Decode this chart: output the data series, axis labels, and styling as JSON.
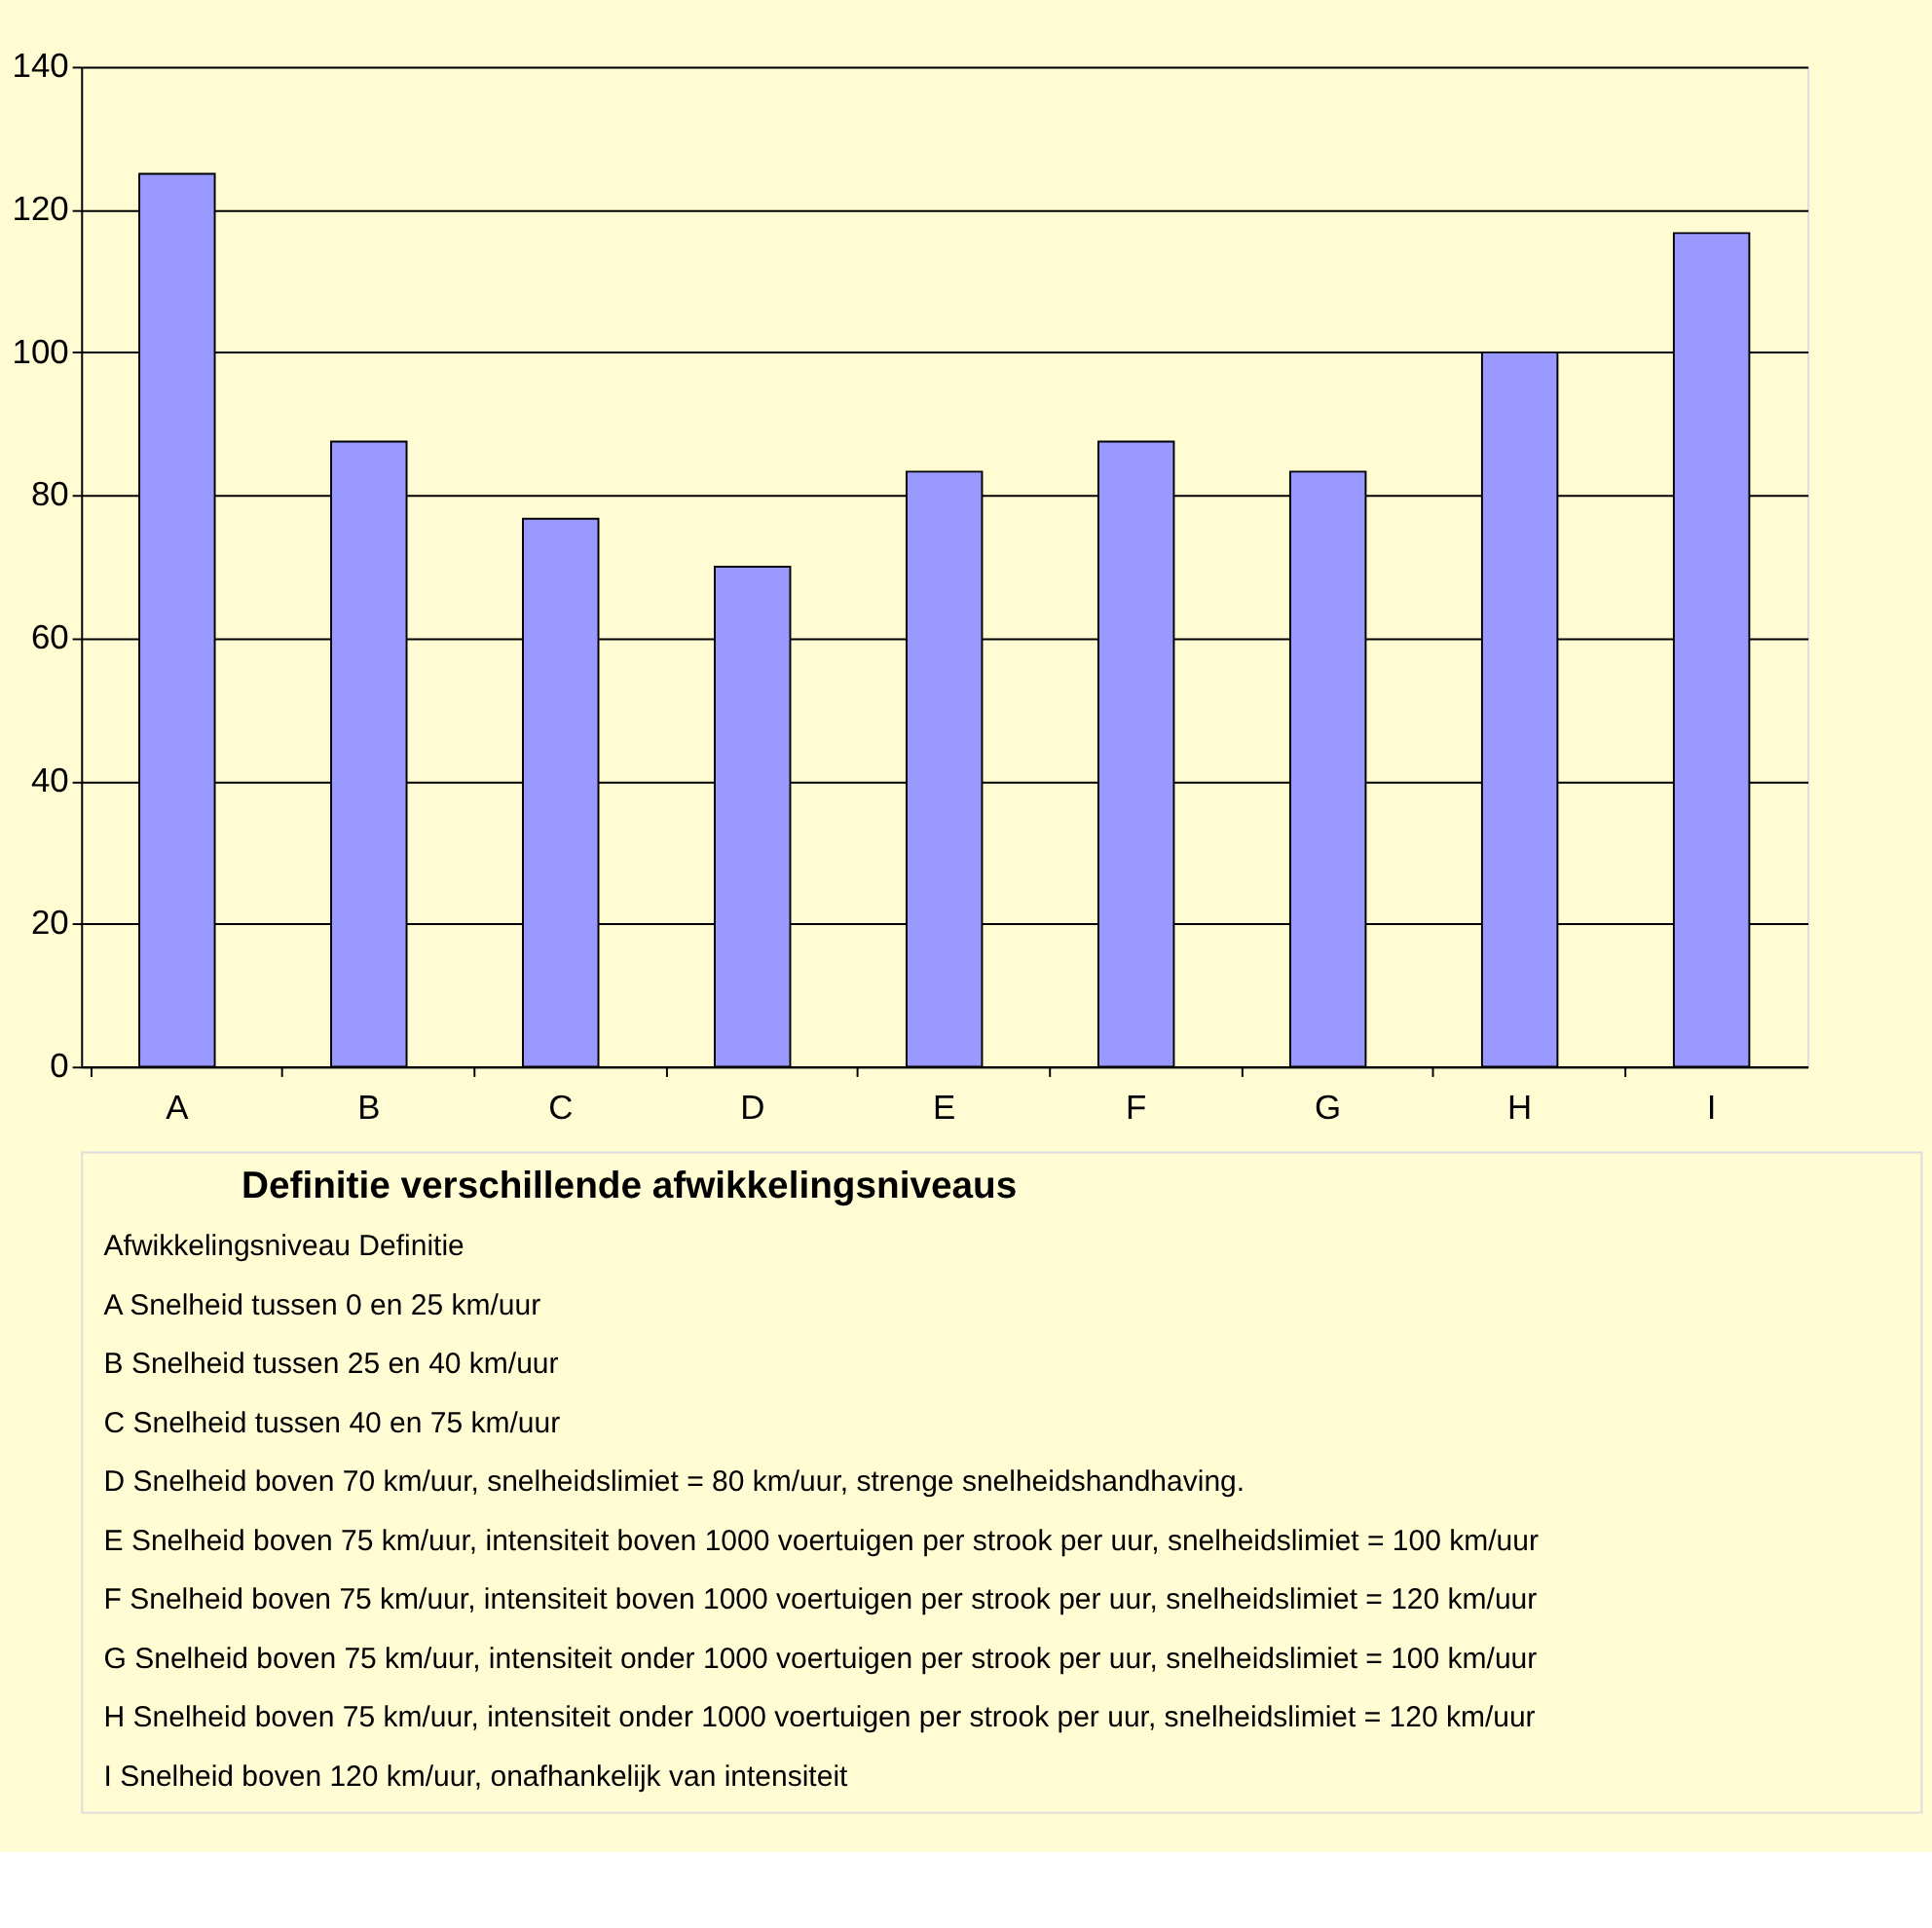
{
  "chart_data": {
    "type": "bar",
    "title": "Definitie verschillende afwikkelingsniveaus",
    "categories": [
      "A",
      "B",
      "C",
      "D",
      "E",
      "F",
      "G",
      "H",
      "I"
    ],
    "values": [
      125,
      87.5,
      76.7,
      70,
      83.3,
      87.5,
      83.3,
      100,
      116.7
    ],
    "color": "#9999ff",
    "ylim": [
      0,
      140
    ],
    "yticks": [
      0,
      20,
      40,
      60,
      80,
      100,
      120,
      140
    ],
    "grid": "y",
    "annotations": [
      "Afwikkelingsniveau   Definitie",
      "A   Snelheid tussen 0 en 25 km/uur",
      "B   Snelheid tussen 25 en 40 km/uur",
      "C   Snelheid tussen 40 en 75 km/uur",
      "D   Snelheid boven 70 km/uur, snelheidslimiet = 80 km/uur, strenge snelheidshandhaving.",
      "E   Snelheid boven 75 km/uur, intensiteit boven 1000 voertuigen per strook per uur, snelheidslimiet = 100 km/uur",
      "F   Snelheid boven 75 km/uur, intensiteit boven 1000 voertuigen per strook per uur, snelheidslimiet = 120 km/uur",
      "G   Snelheid boven 75 km/uur, intensiteit onder 1000 voertuigen per strook per uur, snelheidslimiet = 100 km/uur",
      "H   Snelheid boven 75 km/uur, intensiteit onder 1000 voertuigen per strook per uur, snelheidslimiet = 120 km/uur",
      "I   Snelheid boven 120 km/uur, onafhankelijk van intensiteit"
    ]
  }
}
